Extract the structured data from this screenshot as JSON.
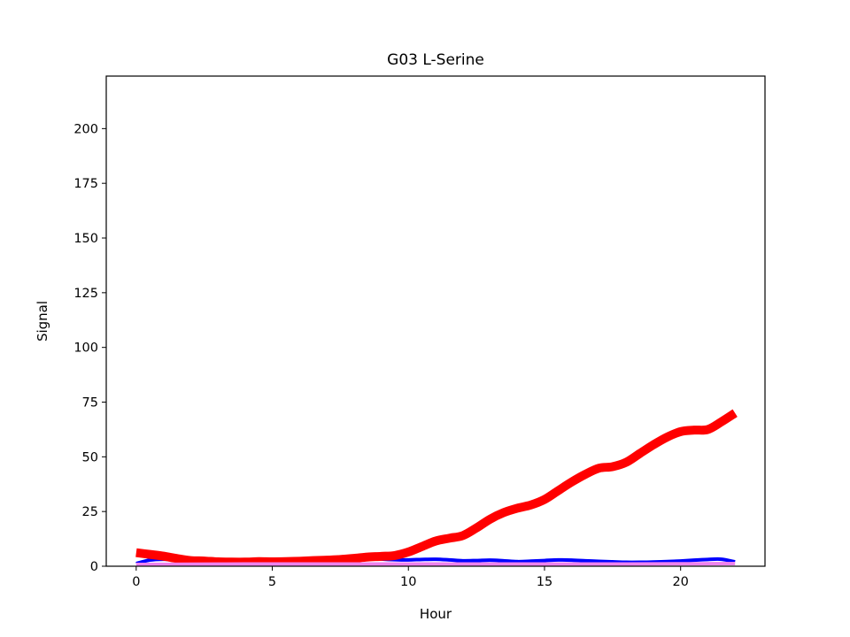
{
  "chart_data": {
    "type": "line",
    "title": "G03 L-Serine",
    "xlabel": "Hour",
    "ylabel": "Signal",
    "xlim": [
      -1.1,
      23.1
    ],
    "ylim": [
      0,
      224
    ],
    "xticks": [
      0,
      5,
      10,
      15,
      20
    ],
    "yticks": [
      0,
      25,
      50,
      75,
      100,
      125,
      150,
      175,
      200
    ],
    "grid": false,
    "legend": "none",
    "series": [
      {
        "color": "#0000ff",
        "line_width": "thin",
        "x": [
          0,
          0.5,
          1,
          1.5,
          2,
          2.5,
          3,
          3.5,
          4,
          4.5,
          5,
          5.5,
          6,
          6.5,
          7,
          7.5,
          8,
          8.5,
          9,
          9.5,
          10,
          10.5,
          11,
          11.5,
          12,
          12.5,
          13,
          13.5,
          14,
          14.5,
          15,
          15.5,
          16,
          16.5,
          17,
          17.5,
          18,
          18.5,
          19,
          19.5,
          20,
          20.5,
          21,
          21.5,
          22
        ],
        "y": [
          1.2,
          2.8,
          3.2,
          2.9,
          2.5,
          2.2,
          2.0,
          2.1,
          2.6,
          2.3,
          2.1,
          2.3,
          2.7,
          3.0,
          3.2,
          3.8,
          4.2,
          3.8,
          3.3,
          3.0,
          2.9,
          3.1,
          3.2,
          2.9,
          2.5,
          2.6,
          2.8,
          2.5,
          2.1,
          2.3,
          2.6,
          2.9,
          2.8,
          2.5,
          2.2,
          2.0,
          1.8,
          1.8,
          1.9,
          2.1,
          2.4,
          2.8,
          3.1,
          3.2,
          2.0
        ]
      },
      {
        "color": "#ff0000",
        "line_width": "thick",
        "x": [
          0,
          0.5,
          1,
          1.5,
          2,
          2.5,
          3,
          3.5,
          4,
          4.5,
          5,
          5.5,
          6,
          6.5,
          7,
          7.5,
          8,
          8.5,
          9,
          9.5,
          10,
          10.5,
          11,
          11.5,
          12,
          12.5,
          13,
          13.5,
          14,
          14.5,
          15,
          15.5,
          16,
          16.5,
          17,
          17.5,
          18,
          18.5,
          19,
          19.5,
          20,
          20.5,
          21,
          21.5,
          22
        ],
        "y": [
          6.2,
          5.4,
          4.6,
          3.5,
          2.6,
          2.4,
          2.0,
          1.9,
          1.9,
          2.1,
          2.0,
          2.1,
          2.3,
          2.6,
          2.8,
          3.1,
          3.6,
          4.2,
          4.5,
          4.9,
          6.5,
          9.0,
          11.5,
          12.8,
          14.0,
          17.5,
          21.5,
          24.5,
          26.5,
          28.0,
          30.5,
          34.5,
          38.5,
          42.0,
          44.8,
          45.5,
          47.5,
          51.5,
          55.5,
          59.0,
          61.5,
          62.2,
          62.5,
          66.0,
          70.0
        ]
      },
      {
        "color": "#ee82ee",
        "line_width": "thin",
        "x": [
          0,
          2,
          4,
          6,
          8,
          10,
          12,
          14,
          16,
          18,
          20,
          22
        ],
        "y": [
          0.8,
          0.9,
          1.0,
          1.0,
          1.0,
          1.0,
          1.0,
          1.0,
          1.0,
          1.0,
          1.1,
          1.2
        ]
      }
    ]
  }
}
